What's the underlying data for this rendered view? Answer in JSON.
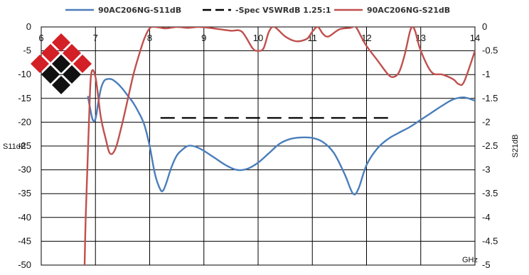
{
  "chart_data": {
    "type": "line",
    "xlabel": "GHz",
    "ylabel": "S11dB",
    "y2label": "S21dB",
    "xlim": [
      6,
      14
    ],
    "ylim": [
      -50,
      0
    ],
    "y2lim": [
      -5,
      0
    ],
    "x_ticks": [
      "6",
      "7",
      "8",
      "9",
      "10",
      "11",
      "12",
      "13",
      "14"
    ],
    "y_ticks": [
      "0",
      "-5",
      "-10",
      "-15",
      "-20",
      "-25",
      "-30",
      "-35",
      "-40",
      "-45",
      "-50"
    ],
    "y2_ticks": [
      "0",
      "-0.5",
      "-1",
      "-1.5",
      "-2",
      "-2.5",
      "-3",
      "-3.5",
      "-4",
      "-4.5",
      "-5"
    ],
    "grid": true,
    "legend_position": "top",
    "series": [
      {
        "name": "90AC206NG-S11dB",
        "axis": "left",
        "color": "#4A7EBB",
        "x": [
          6.86,
          6.9,
          6.95,
          7.0,
          7.05,
          7.1,
          7.15,
          7.2,
          7.3,
          7.4,
          7.5,
          7.6,
          7.7,
          7.8,
          7.9,
          8.0,
          8.1,
          8.2,
          8.25,
          8.3,
          8.4,
          8.5,
          8.6,
          8.7,
          8.8,
          8.9,
          9.0,
          9.2,
          9.4,
          9.6,
          9.8,
          10.0,
          10.2,
          10.4,
          10.6,
          10.8,
          11.0,
          11.2,
          11.4,
          11.6,
          11.75,
          11.85,
          12.0,
          12.2,
          12.4,
          12.6,
          12.8,
          13.0,
          13.2,
          13.4,
          13.6,
          13.8,
          14.0
        ],
        "y": [
          -14.5,
          -17,
          -19.5,
          -19.3,
          -16,
          -13,
          -11.5,
          -11,
          -11,
          -11.8,
          -13,
          -14.5,
          -16,
          -18,
          -20.5,
          -25,
          -31,
          -34.2,
          -34.3,
          -33,
          -29.5,
          -27,
          -25.8,
          -25,
          -25,
          -25.4,
          -26,
          -27.5,
          -29,
          -30,
          -29.8,
          -28.5,
          -26.5,
          -24.5,
          -23.5,
          -23.2,
          -23.3,
          -24.2,
          -26.5,
          -31,
          -35,
          -34,
          -29,
          -25.5,
          -23.5,
          -22.2,
          -21,
          -19.5,
          -18,
          -16.5,
          -15.2,
          -14.8,
          -15.5
        ]
      },
      {
        "name": "-Spec VSWRdB 1.25:1",
        "axis": "left",
        "color": "#000000",
        "x": [
          8.2,
          12.4
        ],
        "y": [
          -19.1,
          -19.1
        ]
      },
      {
        "name": "90AC206NG-S21dB",
        "axis": "right",
        "color": "#C0504D",
        "x": [
          6.8,
          6.82,
          6.85,
          6.88,
          6.92,
          7.0,
          7.1,
          7.2,
          7.25,
          7.3,
          7.35,
          7.4,
          7.5,
          7.6,
          7.7,
          7.8,
          7.9,
          8.0,
          8.1,
          8.3,
          8.5,
          8.7,
          8.9,
          9.1,
          9.3,
          9.5,
          9.7,
          9.9,
          10.0,
          10.1,
          10.2,
          10.3,
          10.5,
          10.7,
          10.9,
          11.0,
          11.1,
          11.2,
          11.3,
          11.5,
          11.7,
          11.8,
          11.9,
          12.0,
          12.2,
          12.4,
          12.5,
          12.6,
          12.7,
          12.8,
          12.85,
          12.9,
          13.0,
          13.2,
          13.4,
          13.6,
          13.7,
          13.8,
          14.0
        ],
        "y": [
          -5,
          -4.0,
          -3.0,
          -2.0,
          -1.0,
          -1.05,
          -1.9,
          -2.4,
          -2.62,
          -2.67,
          -2.6,
          -2.45,
          -2.0,
          -1.5,
          -1.0,
          -0.6,
          -0.25,
          -0.03,
          0,
          -0.03,
          0,
          -0.02,
          0,
          -0.02,
          -0.05,
          -0.08,
          -0.1,
          -0.45,
          -0.5,
          -0.45,
          -0.1,
          0,
          -0.2,
          -0.3,
          -0.25,
          -0.1,
          0,
          -0.15,
          -0.2,
          -0.05,
          -0.02,
          0,
          -0.2,
          -0.4,
          -0.7,
          -1.0,
          -1.05,
          -0.95,
          -0.6,
          -0.1,
          0,
          -0.1,
          -0.5,
          -0.95,
          -1.0,
          -1.1,
          -1.2,
          -1.15,
          -0.5
        ]
      }
    ]
  },
  "logo": {
    "colors": {
      "red": "#D31F26",
      "black": "#111111"
    }
  }
}
